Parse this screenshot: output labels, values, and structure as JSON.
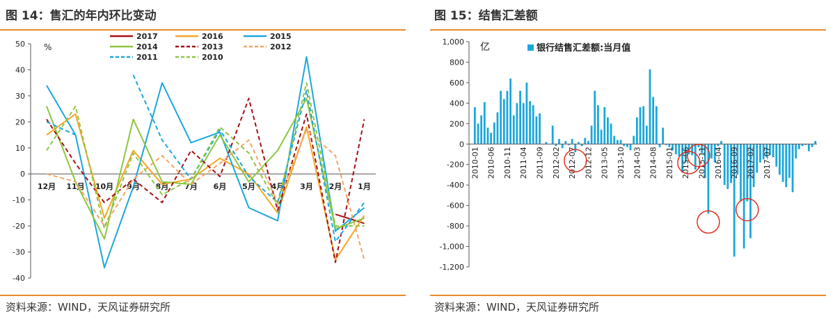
{
  "left": {
    "title": "图 14：售汇的年内环比变动",
    "source": "资料来源：WIND，天风证券研究所"
  },
  "right": {
    "title": "图 15：结售汇差额",
    "source": "资料来源：WIND，天风证券研究所"
  },
  "chart_data": [
    {
      "type": "line",
      "ylabel": "%",
      "ylim": [
        -40,
        50
      ],
      "yticks": [
        50,
        40,
        30,
        20,
        10,
        0,
        -10,
        -20,
        -30,
        -40
      ],
      "categories": [
        "12月",
        "11月",
        "10月",
        "9月",
        "8月",
        "7月",
        "6月",
        "5月",
        "4月",
        "3月",
        "2月",
        "1月"
      ],
      "legend_placement": "top",
      "grid": false,
      "series": [
        {
          "name": "2017",
          "color": "#A50F15",
          "dash": "solid",
          "values": [
            null,
            null,
            null,
            null,
            null,
            null,
            null,
            null,
            null,
            null,
            -15.5,
            -19
          ]
        },
        {
          "name": "2016",
          "color": "#F5A623",
          "dash": "solid",
          "values": [
            15,
            23,
            -17,
            9,
            -4,
            -2,
            6,
            0,
            -15,
            18,
            -33,
            -16
          ]
        },
        {
          "name": "2015",
          "color": "#1BA7DC",
          "dash": "solid",
          "values": [
            34,
            15,
            -36,
            -5,
            35,
            12,
            16,
            -13,
            -18,
            45,
            -22,
            -13
          ]
        },
        {
          "name": "2014",
          "color": "#8CC63F",
          "dash": "solid",
          "values": [
            26,
            -3,
            -25,
            21,
            -3,
            -4,
            15,
            -3,
            9,
            29,
            -21,
            -17
          ]
        },
        {
          "name": "2013",
          "color": "#A50F15",
          "dash": "dash",
          "values": [
            21,
            4,
            -11,
            -2,
            -11,
            9,
            -1,
            29,
            -14,
            23,
            -34,
            21
          ]
        },
        {
          "name": "2012",
          "color": "#F4A460",
          "dash": "dash",
          "values": [
            0,
            -3,
            -20,
            -2,
            7,
            -4,
            4,
            13,
            -11,
            17,
            7,
            -33
          ]
        },
        {
          "name": "2011",
          "color": "#1BA7DC",
          "dash": "dash",
          "values": [
            20,
            15,
            null,
            38,
            13,
            -2,
            17,
            -1,
            -11,
            32,
            -26,
            -11
          ]
        },
        {
          "name": "2010",
          "color": "#8CC63F",
          "dash": "dash",
          "values": [
            9,
            26,
            -21,
            8,
            -8,
            -2,
            18,
            8,
            -12,
            35,
            -20,
            -20
          ]
        }
      ]
    },
    {
      "type": "bar",
      "ylabel": "亿",
      "ylim": [
        -1200,
        1000
      ],
      "yticks": [
        "1,000",
        "800",
        "600",
        "400",
        "200",
        "0",
        "-200",
        "-400",
        "-600",
        "-800",
        "-1,000",
        "-1,200"
      ],
      "legend_placement": "top",
      "grid": false,
      "x_tick_labels": [
        "2010-01",
        "2010-06",
        "2010-11",
        "2011-04",
        "2011-09",
        "2012-02",
        "2012-07",
        "2012-12",
        "2013-05",
        "2013-10",
        "2014-03",
        "2014-08",
        "2015-01",
        "2015-06",
        "2015-11",
        "2016-04",
        "2016-09",
        "2017-02",
        "2017-07"
      ],
      "series": [
        {
          "name": "银行结售汇差额:当月值",
          "color": "#1BA7DC",
          "start": "2010-01",
          "values": [
            360,
            200,
            280,
            410,
            160,
            110,
            210,
            310,
            520,
            440,
            520,
            640,
            280,
            400,
            520,
            400,
            600,
            420,
            380,
            270,
            300,
            0,
            20,
            0,
            180,
            -20,
            50,
            -40,
            30,
            -10,
            50,
            -80,
            20,
            -20,
            60,
            30,
            180,
            520,
            380,
            140,
            360,
            260,
            200,
            80,
            40,
            40,
            -20,
            -30,
            -60,
            80,
            260,
            360,
            370,
            180,
            730,
            460,
            370,
            -30,
            160,
            -10,
            -30,
            -60,
            -100,
            -120,
            -280,
            -180,
            -100,
            -110,
            -250,
            -30,
            -90,
            -330,
            -680,
            -140,
            -180,
            -20,
            30,
            -400,
            -440,
            -380,
            -1100,
            -300,
            -560,
            -1020,
            -560,
            -920,
            -420,
            -280,
            -180,
            -150,
            -130,
            -110,
            -130,
            -220,
            -300,
            -370,
            -420,
            -330,
            -470,
            -140,
            -50,
            -20,
            -10,
            -70,
            -30,
            30
          ]
        }
      ],
      "annotations": [
        {
          "label": "circle",
          "x": "2012-08"
        },
        {
          "label": "circle",
          "x": "2015-07"
        },
        {
          "label": "circle",
          "x": "2015-10"
        },
        {
          "label": "circle",
          "x": "2016-01"
        },
        {
          "label": "circle",
          "x": "2017-01"
        }
      ]
    }
  ]
}
